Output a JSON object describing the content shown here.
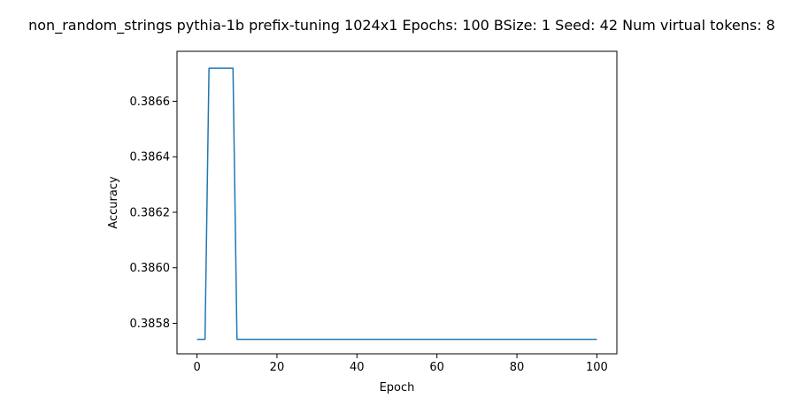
{
  "chart_data": {
    "type": "line",
    "title": "non_random_strings pythia-1b prefix-tuning 1024x1 Epochs: 100 BSize: 1 Seed: 42 Num virtual tokens: 8",
    "xlabel": "Epoch",
    "ylabel": "Accuracy",
    "xlim": [
      -5,
      105
    ],
    "ylim": [
      0.38569,
      0.38678
    ],
    "x_ticks": [
      0,
      20,
      40,
      60,
      80,
      100
    ],
    "x_tick_labels": [
      "0",
      "20",
      "40",
      "60",
      "80",
      "100"
    ],
    "y_ticks": [
      0.3858,
      0.386,
      0.3862,
      0.3864,
      0.3866
    ],
    "y_tick_labels": [
      "0.3858",
      "0.3860",
      "0.3862",
      "0.3864",
      "0.3866"
    ],
    "grid": false,
    "series": [
      {
        "color": "#1f77b4",
        "x": [
          0,
          1,
          2,
          3,
          4,
          5,
          6,
          7,
          8,
          9,
          10,
          11,
          12,
          13,
          14,
          15,
          16,
          17,
          18,
          19,
          20,
          21,
          22,
          23,
          24,
          25,
          26,
          27,
          28,
          29,
          30,
          31,
          32,
          33,
          34,
          35,
          36,
          37,
          38,
          39,
          40,
          41,
          42,
          43,
          44,
          45,
          46,
          47,
          48,
          49,
          50,
          51,
          52,
          53,
          54,
          55,
          56,
          57,
          58,
          59,
          60,
          61,
          62,
          63,
          64,
          65,
          66,
          67,
          68,
          69,
          70,
          71,
          72,
          73,
          74,
          75,
          76,
          77,
          78,
          79,
          80,
          81,
          82,
          83,
          84,
          85,
          86,
          87,
          88,
          89,
          90,
          91,
          92,
          93,
          94,
          95,
          96,
          97,
          98,
          99,
          100
        ],
        "y": [
          0.385742,
          0.385742,
          0.385742,
          0.386719,
          0.386719,
          0.386719,
          0.386719,
          0.386719,
          0.386719,
          0.386719,
          0.385742,
          0.385742,
          0.385742,
          0.385742,
          0.385742,
          0.385742,
          0.385742,
          0.385742,
          0.385742,
          0.385742,
          0.385742,
          0.385742,
          0.385742,
          0.385742,
          0.385742,
          0.385742,
          0.385742,
          0.385742,
          0.385742,
          0.385742,
          0.385742,
          0.385742,
          0.385742,
          0.385742,
          0.385742,
          0.385742,
          0.385742,
          0.385742,
          0.385742,
          0.385742,
          0.385742,
          0.385742,
          0.385742,
          0.385742,
          0.385742,
          0.385742,
          0.385742,
          0.385742,
          0.385742,
          0.385742,
          0.385742,
          0.385742,
          0.385742,
          0.385742,
          0.385742,
          0.385742,
          0.385742,
          0.385742,
          0.385742,
          0.385742,
          0.385742,
          0.385742,
          0.385742,
          0.385742,
          0.385742,
          0.385742,
          0.385742,
          0.385742,
          0.385742,
          0.385742,
          0.385742,
          0.385742,
          0.385742,
          0.385742,
          0.385742,
          0.385742,
          0.385742,
          0.385742,
          0.385742,
          0.385742,
          0.385742,
          0.385742,
          0.385742,
          0.385742,
          0.385742,
          0.385742,
          0.385742,
          0.385742,
          0.385742,
          0.385742,
          0.385742,
          0.385742,
          0.385742,
          0.385742,
          0.385742,
          0.385742,
          0.385742,
          0.385742,
          0.385742,
          0.385742,
          0.385742
        ]
      }
    ]
  }
}
